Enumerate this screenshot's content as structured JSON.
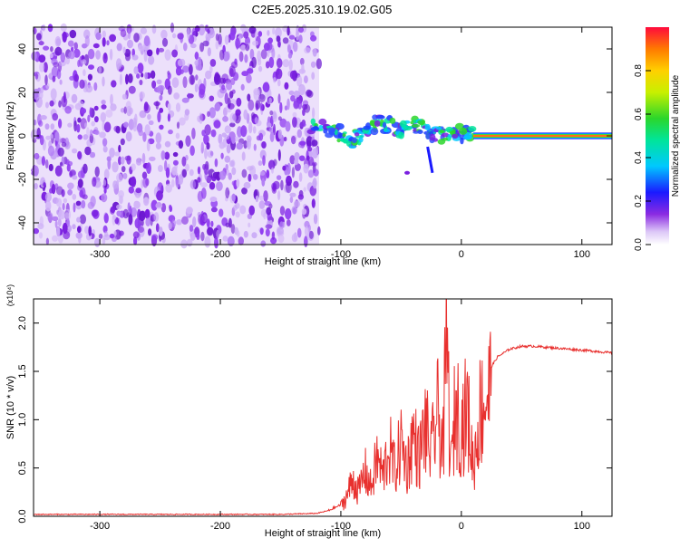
{
  "figure_title": "C2E5.2025.310.19.02.G05",
  "colors": {
    "spectrum_purple": "#7a1fe0",
    "snr_line": "#e8302e",
    "axis": "#000000",
    "background": "#ffffff"
  },
  "chart_data": [
    {
      "type": "heatmap",
      "title": "C2E5.2025.310.19.02.G05",
      "xlabel": "Height of straight line (km)",
      "ylabel": "Frequency (Hz)",
      "xlim": [
        -355,
        125
      ],
      "ylim": [
        -50,
        50
      ],
      "x_ticks": [
        -300,
        -200,
        -100,
        0,
        100
      ],
      "x_tick_labels": [
        "-300",
        "-200",
        "-100",
        "0",
        "100"
      ],
      "y_ticks": [
        -40,
        -20,
        0,
        20,
        40
      ],
      "y_tick_labels": [
        "-40",
        "-20",
        "0",
        "20",
        "40"
      ],
      "noise_region": {
        "x_from": -355,
        "x_to": -118,
        "freq_from": -50,
        "freq_to": 50
      },
      "signal_band": {
        "x_from": 10,
        "x_to": 125,
        "freq_center": 0,
        "half_width_hz": 1.5
      },
      "signal_trace": [
        {
          "x": -125,
          "y": 4
        },
        {
          "x": -110,
          "y": 3
        },
        {
          "x": -100,
          "y": 1
        },
        {
          "x": -90,
          "y": -2
        },
        {
          "x": -80,
          "y": 2
        },
        {
          "x": -70,
          "y": 6
        },
        {
          "x": -60,
          "y": 5
        },
        {
          "x": -50,
          "y": 3
        },
        {
          "x": -40,
          "y": 6
        },
        {
          "x": -30,
          "y": 2
        },
        {
          "x": -20,
          "y": 1
        },
        {
          "x": -10,
          "y": 0
        },
        {
          "x": 0,
          "y": 1
        },
        {
          "x": 10,
          "y": 0
        }
      ],
      "colorbar": {
        "label": "Normalized spectral amplitude",
        "range": [
          0,
          1
        ],
        "ticks": [
          0.0,
          0.2,
          0.4,
          0.6,
          0.8
        ],
        "tick_labels": [
          "0.0",
          "0.2",
          "0.4",
          "0.6",
          "0.8"
        ]
      }
    },
    {
      "type": "line",
      "title": "",
      "xlabel": "Height of straight line (km)",
      "ylabel": "SNR (10 * v/v)",
      "multiplier_label": "(x10⁴)",
      "xlim": [
        -355,
        125
      ],
      "ylim": [
        0,
        2.25
      ],
      "x_ticks": [
        -300,
        -200,
        -100,
        0,
        100
      ],
      "x_tick_labels": [
        "-300",
        "-200",
        "-100",
        "0",
        "100"
      ],
      "y_ticks": [
        0.0,
        0.5,
        1.0,
        1.5,
        2.0
      ],
      "y_tick_labels": [
        "0.0",
        "0.5",
        "1.0",
        "1.5",
        "2.0"
      ],
      "series": [
        {
          "name": "SNR",
          "x": [
            -355,
            -300,
            -250,
            -200,
            -150,
            -120,
            -110,
            -100,
            -95,
            -90,
            -85,
            -80,
            -75,
            -70,
            -65,
            -60,
            -55,
            -50,
            -45,
            -40,
            -35,
            -30,
            -25,
            -20,
            -15,
            -12,
            -10,
            -8,
            -5,
            0,
            5,
            10,
            15,
            20,
            25,
            30,
            40,
            50,
            60,
            70,
            80,
            90,
            100,
            110,
            125
          ],
          "values": [
            0.02,
            0.02,
            0.02,
            0.02,
            0.02,
            0.03,
            0.06,
            0.12,
            0.25,
            0.45,
            0.3,
            0.55,
            0.35,
            0.7,
            0.5,
            0.85,
            0.55,
            0.9,
            0.6,
            1.0,
            0.7,
            1.1,
            0.75,
            1.25,
            0.85,
            2.25,
            1.1,
            0.6,
            1.4,
            1.1,
            1.3,
            0.6,
            1.25,
            1.45,
            1.55,
            1.65,
            1.73,
            1.76,
            1.76,
            1.75,
            1.74,
            1.73,
            1.72,
            1.71,
            1.69
          ]
        }
      ]
    }
  ]
}
